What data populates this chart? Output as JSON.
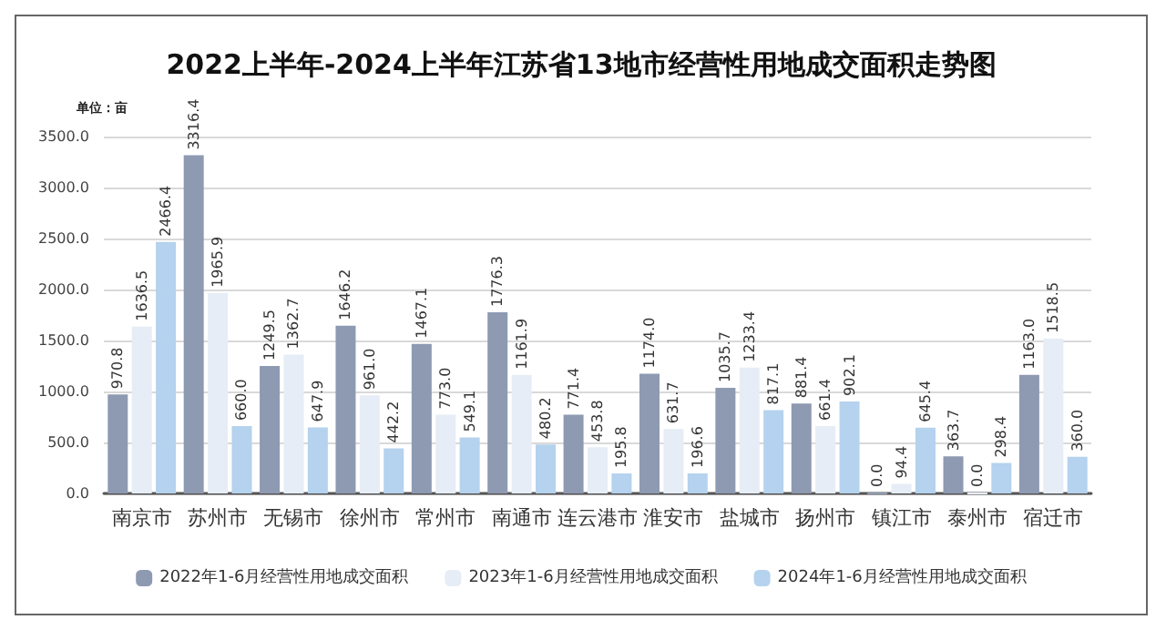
{
  "chart_data": {
    "type": "bar",
    "title": "2022上半年-2024上半年江苏省13地市经营性用地成交面积走势图",
    "ylabel": "单位：亩",
    "categories": [
      "南京市",
      "苏州市",
      "无锡市",
      "徐州市",
      "常州市",
      "南通市",
      "连云港市",
      "淮安市",
      "盐城市",
      "扬州市",
      "镇江市",
      "泰州市",
      "宿迁市"
    ],
    "series": [
      {
        "name": "2022年1-6月经营性用地成交面积",
        "color": "#8e9ab2",
        "values": [
          970.8,
          3316.4,
          1249.5,
          1646.2,
          1467.1,
          1776.3,
          771.4,
          1174.0,
          1035.7,
          881.4,
          0.0,
          363.7,
          1163.0
        ],
        "value_labels": [
          "970.8",
          "3316.4",
          "1249.5",
          "1646.2",
          "1467.1",
          "1776.3",
          "771.4",
          "1174.0",
          "1035.7",
          "881.4",
          "0.0",
          "363.7",
          "1163.0"
        ]
      },
      {
        "name": "2023年1-6月经营性用地成交面积",
        "color": "#e6edf6",
        "values": [
          1636.5,
          1965.9,
          1362.7,
          961.0,
          773.0,
          1161.9,
          453.8,
          631.7,
          1233.4,
          661.4,
          94.4,
          0.0,
          1518.5
        ],
        "value_labels": [
          "1636.5",
          "1965.9",
          "1362.7",
          "961.0",
          "773.0",
          "1161.9",
          "453.8",
          "631.7",
          "1233.4",
          "661.4",
          "94.4",
          "0.0",
          "1518.5"
        ]
      },
      {
        "name": "2024年1-6月经营性用地成交面积",
        "color": "#b5d2ee",
        "values": [
          2466.4,
          660.0,
          647.9,
          442.2,
          549.1,
          480.2,
          195.8,
          196.6,
          817.1,
          902.1,
          645.4,
          298.4,
          360.0
        ],
        "value_labels": [
          "2466.4",
          "660.0",
          "647.9",
          "442.2",
          "549.1",
          "480.2",
          "195.8",
          "196.6",
          "817.1",
          "902.1",
          "645.4",
          "298.4",
          "360.0"
        ]
      }
    ],
    "ylim": [
      0,
      3500
    ],
    "yticks": [
      {
        "value": 0,
        "label": "0.0"
      },
      {
        "value": 500,
        "label": "500.0"
      },
      {
        "value": 1000,
        "label": "1000.0"
      },
      {
        "value": 1500,
        "label": "1500.0"
      },
      {
        "value": 2000,
        "label": "2000.0"
      },
      {
        "value": 2500,
        "label": "2500.0"
      },
      {
        "value": 3000,
        "label": "3000.0"
      },
      {
        "value": 3500,
        "label": "3500.0"
      }
    ],
    "grid": "y",
    "legend": "bottom"
  }
}
